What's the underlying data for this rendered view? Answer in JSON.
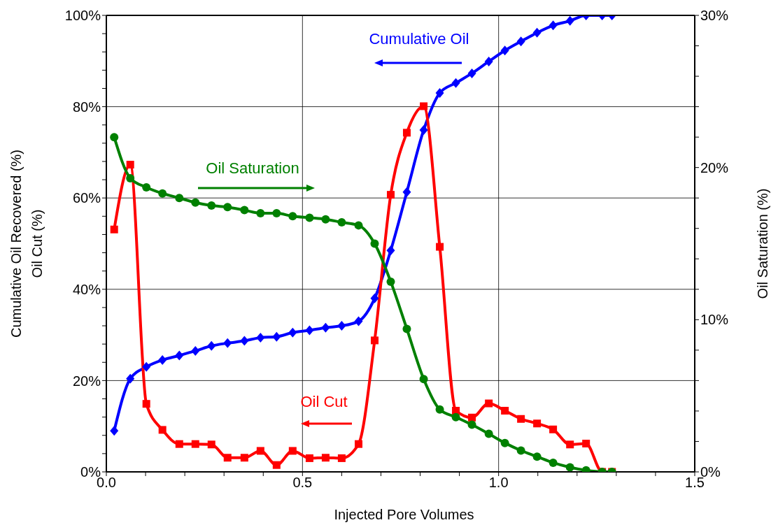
{
  "chart_data": {
    "type": "line",
    "xlabel": "Injected Pore Volumes",
    "ylabel": "Cumulative Oil Recovered (%)\nOil Cut (%)",
    "y2label": "Oil Saturation (%)",
    "x": [
      0.02,
      0.061,
      0.102,
      0.143,
      0.186,
      0.227,
      0.268,
      0.309,
      0.352,
      0.393,
      0.434,
      0.475,
      0.518,
      0.559,
      0.6,
      0.643,
      0.684,
      0.725,
      0.766,
      0.809,
      0.85,
      0.891,
      0.932,
      0.975,
      1.016,
      1.057,
      1.098,
      1.139,
      1.182,
      1.223,
      1.264,
      1.289
    ],
    "series": [
      {
        "name": "Cumulative Oil",
        "color": "#0000ff",
        "marker": "diamond",
        "values": [
          9.0,
          20.4,
          23.0,
          24.5,
          25.5,
          26.5,
          27.6,
          28.2,
          28.7,
          29.4,
          29.6,
          30.5,
          31.0,
          31.6,
          32.0,
          33.0,
          38.0,
          48.5,
          61.3,
          74.9,
          83.0,
          85.2,
          87.3,
          89.9,
          92.3,
          94.3,
          96.2,
          97.8,
          98.8,
          100,
          100,
          100
        ]
      },
      {
        "name": "Oil Cut",
        "color": "#ff0000",
        "marker": "square",
        "values": [
          53.1,
          67.3,
          14.9,
          9.2,
          6.1,
          6.1,
          6.0,
          3.1,
          3.1,
          4.6,
          1.5,
          4.6,
          3.0,
          3.1,
          3.0,
          6.1,
          28.8,
          60.7,
          74.3,
          80.1,
          49.3,
          13.4,
          11.9,
          15.0,
          13.4,
          11.6,
          10.6,
          9.3,
          6.0,
          6.2,
          0,
          0
        ]
      },
      {
        "name": "Oil Saturation",
        "color": "#008000",
        "marker": "circle",
        "axis": "y2",
        "values": [
          22.0,
          19.3,
          18.7,
          18.3,
          18.0,
          17.7,
          17.5,
          17.4,
          17.2,
          17.0,
          17.0,
          16.8,
          16.7,
          16.6,
          16.4,
          16.2,
          15.0,
          12.5,
          9.4,
          6.1,
          4.1,
          3.6,
          3.1,
          2.5,
          1.9,
          1.4,
          1.0,
          0.6,
          0.3,
          0.1,
          0,
          0
        ]
      }
    ],
    "xlim": [
      0,
      1.5
    ],
    "xticks": [
      {
        "value": 0,
        "label": "0.0"
      },
      {
        "value": 0.1,
        "label": null
      },
      {
        "value": 0.2,
        "label": null
      },
      {
        "value": 0.3,
        "label": null
      },
      {
        "value": 0.4,
        "label": null
      },
      {
        "value": 0.5,
        "label": "0.5"
      },
      {
        "value": 0.6,
        "label": null
      },
      {
        "value": 0.7,
        "label": null
      },
      {
        "value": 0.8,
        "label": null
      },
      {
        "value": 0.9,
        "label": null
      },
      {
        "value": 1,
        "label": "1.0"
      },
      {
        "value": 1.1,
        "label": null
      },
      {
        "value": 1.2,
        "label": null
      },
      {
        "value": 1.3,
        "label": null
      },
      {
        "value": 1.4,
        "label": null
      },
      {
        "value": 1.5,
        "label": "1.5"
      }
    ],
    "ylim": [
      0,
      100
    ],
    "yticks": [
      {
        "value": 0,
        "label": "0%"
      },
      {
        "value": 4,
        "label": null
      },
      {
        "value": 8,
        "label": null
      },
      {
        "value": 12,
        "label": null
      },
      {
        "value": 16,
        "label": null
      },
      {
        "value": 20,
        "label": "20%"
      },
      {
        "value": 24,
        "label": null
      },
      {
        "value": 28,
        "label": null
      },
      {
        "value": 32,
        "label": null
      },
      {
        "value": 36,
        "label": null
      },
      {
        "value": 40,
        "label": "40%"
      },
      {
        "value": 44,
        "label": null
      },
      {
        "value": 48,
        "label": null
      },
      {
        "value": 52,
        "label": null
      },
      {
        "value": 56,
        "label": null
      },
      {
        "value": 60,
        "label": "60%"
      },
      {
        "value": 64,
        "label": null
      },
      {
        "value": 68,
        "label": null
      },
      {
        "value": 72,
        "label": null
      },
      {
        "value": 76,
        "label": null
      },
      {
        "value": 80,
        "label": "80%"
      },
      {
        "value": 84,
        "label": null
      },
      {
        "value": 88,
        "label": null
      },
      {
        "value": 92,
        "label": null
      },
      {
        "value": 96,
        "label": null
      },
      {
        "value": 100,
        "label": "100%"
      }
    ],
    "y2lim": [
      0,
      30
    ],
    "y2ticks": [
      {
        "value": 0,
        "label": "0%"
      },
      {
        "value": 2,
        "label": null
      },
      {
        "value": 4,
        "label": null
      },
      {
        "value": 6,
        "label": null
      },
      {
        "value": 8,
        "label": null
      },
      {
        "value": 10,
        "label": "10%"
      },
      {
        "value": 12,
        "label": null
      },
      {
        "value": 14,
        "label": null
      },
      {
        "value": 16,
        "label": null
      },
      {
        "value": 18,
        "label": null
      },
      {
        "value": 20,
        "label": "20%"
      },
      {
        "value": 22,
        "label": null
      },
      {
        "value": 24,
        "label": null
      },
      {
        "value": 26,
        "label": null
      },
      {
        "value": 28,
        "label": null
      },
      {
        "value": 30,
        "label": "30%"
      }
    ],
    "grid": true,
    "legend": false
  }
}
